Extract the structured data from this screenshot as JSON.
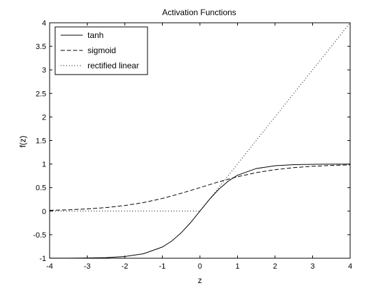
{
  "chart_data": {
    "type": "line",
    "title": "Activation Functions",
    "xlabel": "z",
    "ylabel": "f(z)",
    "xlim": [
      -4,
      4
    ],
    "ylim": [
      -1,
      4
    ],
    "xticks": [
      -4,
      -3,
      -2,
      -1,
      0,
      1,
      2,
      3,
      4
    ],
    "yticks": [
      -1,
      -0.5,
      0,
      0.5,
      1,
      1.5,
      2,
      2.5,
      3,
      3.5,
      4
    ],
    "xtick_labels": [
      "-4",
      "-3",
      "-2",
      "-1",
      "0",
      "1",
      "2",
      "3",
      "4"
    ],
    "ytick_labels": [
      "-1",
      "-0.5",
      "0",
      "0.5",
      "1",
      "1.5",
      "2",
      "2.5",
      "3",
      "3.5",
      "4"
    ],
    "legend_placement": "top-left",
    "grid": false,
    "series": [
      {
        "name": "tanh",
        "style": "solid",
        "color": "#000000",
        "x": [
          -4,
          -3.5,
          -3,
          -2.5,
          -2,
          -1.5,
          -1,
          -0.75,
          -0.5,
          -0.25,
          0,
          0.25,
          0.5,
          0.75,
          1,
          1.5,
          2,
          2.5,
          3,
          3.5,
          4
        ],
        "y": [
          -0.999,
          -0.998,
          -0.995,
          -0.987,
          -0.964,
          -0.905,
          -0.762,
          -0.635,
          -0.462,
          -0.245,
          0,
          0.245,
          0.462,
          0.635,
          0.762,
          0.905,
          0.964,
          0.987,
          0.995,
          0.998,
          0.999
        ]
      },
      {
        "name": "sigmoid",
        "style": "dashed",
        "color": "#000000",
        "x": [
          -4,
          -3.5,
          -3,
          -2.5,
          -2,
          -1.5,
          -1,
          -0.5,
          0,
          0.5,
          1,
          1.5,
          2,
          2.5,
          3,
          3.5,
          4
        ],
        "y": [
          0.018,
          0.029,
          0.047,
          0.076,
          0.119,
          0.182,
          0.269,
          0.378,
          0.5,
          0.622,
          0.731,
          0.818,
          0.881,
          0.924,
          0.953,
          0.971,
          0.982
        ]
      },
      {
        "name": "rectified linear",
        "style": "dotted",
        "color": "#000000",
        "x": [
          -4,
          -3,
          -2,
          -1,
          0,
          1,
          2,
          3,
          4
        ],
        "y": [
          0,
          0,
          0,
          0,
          0,
          1,
          2,
          3,
          4
        ]
      }
    ]
  }
}
